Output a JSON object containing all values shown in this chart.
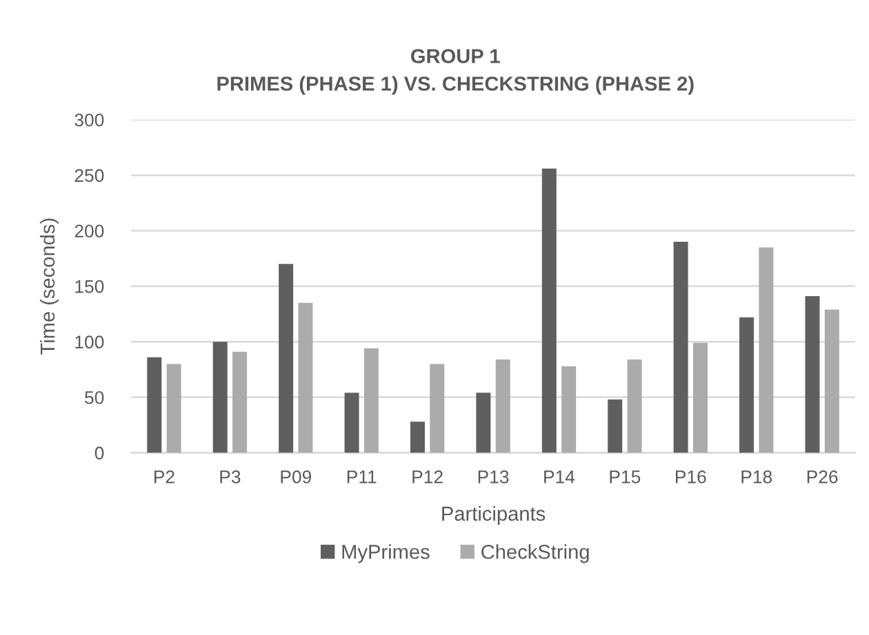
{
  "chart_data": {
    "type": "bar",
    "title": "GROUP 1",
    "subtitle": "PRIMES (PHASE 1) VS. CHECKSTRING (PHASE 2)",
    "xlabel": "Participants",
    "ylabel": "Time (seconds)",
    "categories": [
      "P2",
      "P3",
      "P09",
      "P11",
      "P12",
      "P13",
      "P14",
      "P15",
      "P16",
      "P18",
      "P26"
    ],
    "series": [
      {
        "name": "MyPrimes",
        "color": "#5f5f5f",
        "values": [
          86,
          100,
          170,
          54,
          28,
          54,
          256,
          48,
          190,
          122,
          141
        ]
      },
      {
        "name": "CheckString",
        "color": "#ababab",
        "values": [
          80,
          91,
          135,
          94,
          80,
          84,
          78,
          84,
          99,
          185,
          129
        ]
      }
    ],
    "ylim": [
      0,
      300
    ],
    "yticks": [
      0,
      50,
      100,
      150,
      200,
      250,
      300
    ],
    "grid": "y",
    "legend": "bottom"
  }
}
